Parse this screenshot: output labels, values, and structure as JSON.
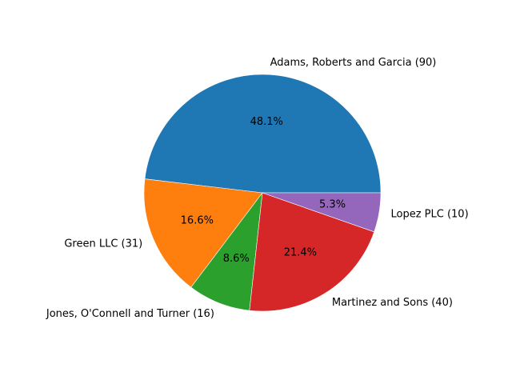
{
  "chart_data": {
    "type": "pie",
    "categories": [
      "Adams, Roberts and Garcia",
      "Green LLC",
      "Jones, O'Connell and Turner",
      "Martinez and Sons",
      "Lopez PLC"
    ],
    "values": [
      90,
      31,
      16,
      40,
      10
    ],
    "slice_labels": [
      "Adams, Roberts and Garcia (90)",
      "Green LLC (31)",
      "Jones, O'Connell and Turner (16)",
      "Martinez and Sons (40)",
      "Lopez PLC (10)"
    ],
    "percent_labels": [
      "48.1%",
      "16.6%",
      "8.6%",
      "21.4%",
      "5.3%"
    ],
    "colors": [
      "#1f77b4",
      "#ff7f0e",
      "#2ca02c",
      "#d62728",
      "#9467bd"
    ],
    "start_angle_deg": 0,
    "direction": "counterclockwise",
    "title": "",
    "legend": "none"
  }
}
